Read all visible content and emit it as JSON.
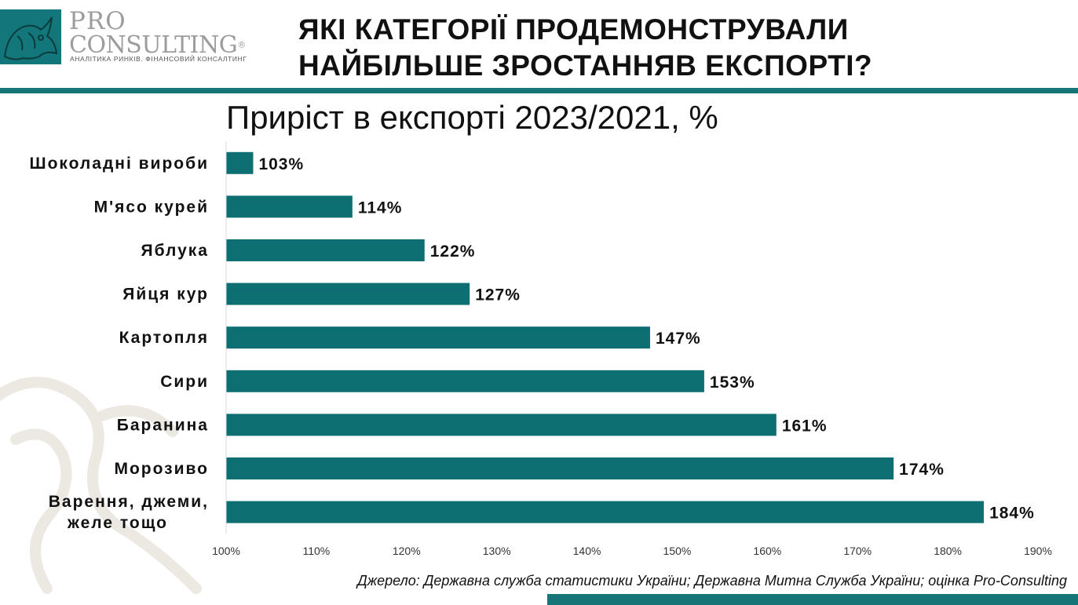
{
  "brand": {
    "name_top": "PRO",
    "name_bottom": "CONSULTING",
    "registered_mark": "®",
    "tagline": "АНАЛІТИКА РИНКІВ. ФІНАНСОВИЙ КОНСАЛТИНГ",
    "logo_color": "#12767a"
  },
  "headline": {
    "line1": "ЯКІ КАТЕГОРІЇ ПРОДЕМОНСТРУВАЛИ",
    "line2": "НАЙБІЛЬШЕ ЗРОСТАННЯВ ЕКСПОРТІ?"
  },
  "colors": {
    "accent": "#167577",
    "bar": "#0e6f73"
  },
  "chart_data": {
    "type": "bar",
    "orientation": "horizontal",
    "title": "Приріст в експорті 2023/2021, %",
    "categories": [
      "Шоколадні вироби",
      "М'ясо курей",
      "Яблука",
      "Яйця кур",
      "Картопля",
      "Сири",
      "Баранина",
      "Морозиво",
      "Варення, джеми, желе тощо"
    ],
    "category_lines": [
      [
        "Шоколадні вироби"
      ],
      [
        "М'ясо курей"
      ],
      [
        "Яблука"
      ],
      [
        "Яйця кур"
      ],
      [
        "Картопля"
      ],
      [
        "Сири"
      ],
      [
        "Баранина"
      ],
      [
        "Морозиво"
      ],
      [
        "Варення, джеми,",
        "желе тощо"
      ]
    ],
    "values": [
      103,
      114,
      122,
      127,
      147,
      153,
      161,
      174,
      184
    ],
    "data_labels": [
      "103%",
      "114%",
      "122%",
      "127%",
      "147%",
      "153%",
      "161%",
      "174%",
      "184%"
    ],
    "xlim": [
      100,
      190
    ],
    "xticks": [
      100,
      110,
      120,
      130,
      140,
      150,
      160,
      170,
      180,
      190
    ],
    "xtick_labels": [
      "100%",
      "110%",
      "120%",
      "130%",
      "140%",
      "150%",
      "160%",
      "170%",
      "180%",
      "190%"
    ],
    "grid": false,
    "legend": "none"
  },
  "source": "Джерело: Державна служба статистики України; Державна Митна Служба України; оцінка Pro-Consulting"
}
